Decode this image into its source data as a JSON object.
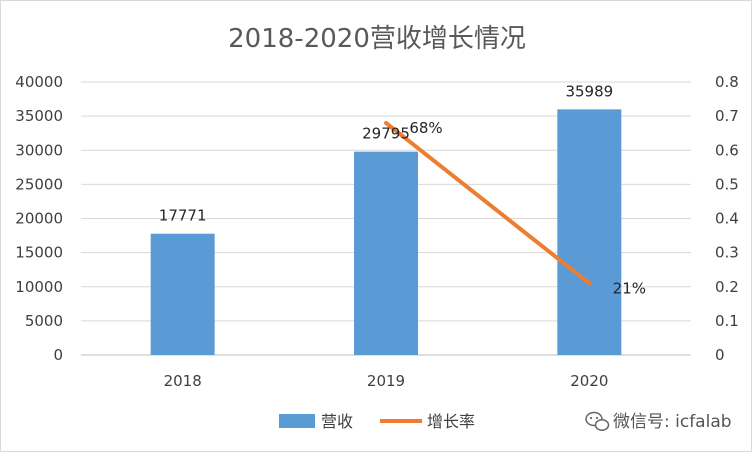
{
  "chart_data": {
    "type": "bar",
    "title": "2018-2020营收增长情况",
    "categories": [
      "2018",
      "2019",
      "2020"
    ],
    "series": [
      {
        "name": "营收",
        "kind": "bar",
        "axis": "left",
        "color": "#5b9bd5",
        "values": [
          17771,
          29795,
          35989
        ],
        "labels": [
          "17771",
          "29795",
          "35989"
        ]
      },
      {
        "name": "增长率",
        "kind": "line",
        "axis": "right",
        "color": "#ed7d31",
        "values": [
          null,
          0.68,
          0.21
        ],
        "labels": [
          "",
          "68%",
          "21%"
        ]
      }
    ],
    "y_left": {
      "min": 0,
      "max": 40000,
      "step": 5000,
      "ticks": [
        "0",
        "5000",
        "10000",
        "15000",
        "20000",
        "25000",
        "30000",
        "35000",
        "40000"
      ]
    },
    "y_right": {
      "min": 0,
      "max": 0.8,
      "step": 0.1,
      "ticks": [
        "0",
        "0.1",
        "0.2",
        "0.3",
        "0.4",
        "0.5",
        "0.6",
        "0.7",
        "0.8"
      ]
    },
    "grid": true,
    "legend_position": "bottom"
  },
  "watermark": {
    "text": "微信号: icfalab",
    "icon": "wechat-icon"
  }
}
